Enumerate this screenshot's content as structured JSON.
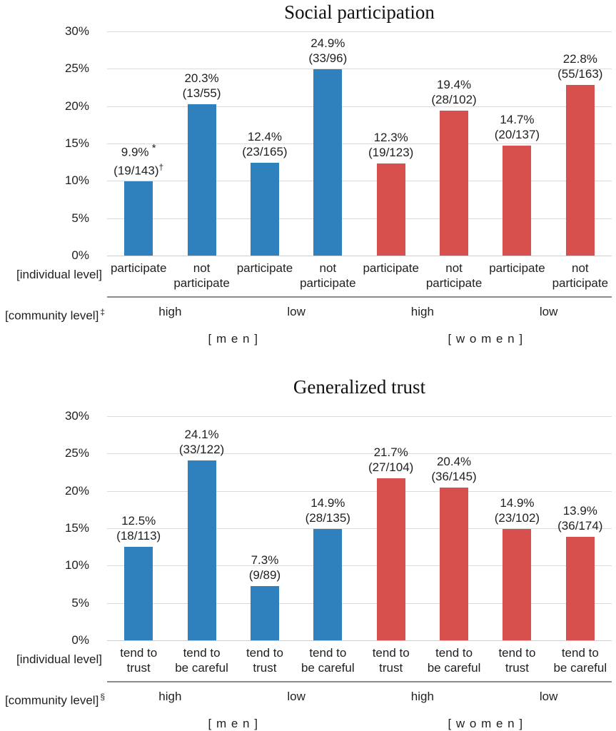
{
  "chart_data": [
    {
      "type": "bar",
      "title": "Social participation",
      "ylabel": "",
      "xlabel": "",
      "ylim": [
        0,
        30
      ],
      "grid": true,
      "yticks": [
        "30%",
        "25%",
        "20%",
        "15%",
        "10%",
        "5%",
        "0%"
      ],
      "colors": {
        "men": "#2e81bd",
        "women": "#d8504d"
      },
      "row_labels": {
        "individual": "[individual level]",
        "community": "[community level]",
        "community_sup": "‡"
      },
      "bars": [
        {
          "value": 9.9,
          "pct": "9.9%",
          "pct_sup": "*",
          "frac": "(19/143)",
          "frac_sup": "†",
          "x_lines": [
            "participate"
          ],
          "gender": "men"
        },
        {
          "value": 20.3,
          "pct": "20.3%",
          "pct_sup": "",
          "frac": "(13/55)",
          "frac_sup": "",
          "x_lines": [
            "not",
            "participate"
          ],
          "gender": "men"
        },
        {
          "value": 12.4,
          "pct": "12.4%",
          "pct_sup": "",
          "frac": "(23/165)",
          "frac_sup": "",
          "x_lines": [
            "participate"
          ],
          "gender": "men"
        },
        {
          "value": 24.9,
          "pct": "24.9%",
          "pct_sup": "",
          "frac": "(33/96)",
          "frac_sup": "",
          "x_lines": [
            "not",
            "participate"
          ],
          "gender": "men"
        },
        {
          "value": 12.3,
          "pct": "12.3%",
          "pct_sup": "",
          "frac": "(19/123)",
          "frac_sup": "",
          "x_lines": [
            "participate"
          ],
          "gender": "women"
        },
        {
          "value": 19.4,
          "pct": "19.4%",
          "pct_sup": "",
          "frac": "(28/102)",
          "frac_sup": "",
          "x_lines": [
            "not",
            "participate"
          ],
          "gender": "women"
        },
        {
          "value": 14.7,
          "pct": "14.7%",
          "pct_sup": "",
          "frac": "(20/137)",
          "frac_sup": "",
          "x_lines": [
            "participate"
          ],
          "gender": "women"
        },
        {
          "value": 22.8,
          "pct": "22.8%",
          "pct_sup": "",
          "frac": "(55/163)",
          "frac_sup": "",
          "x_lines": [
            "not",
            "participate"
          ],
          "gender": "women"
        }
      ],
      "community_groups": [
        "high",
        "low",
        "high",
        "low"
      ],
      "gender_groups": [
        "[ m e n ]",
        "[ w o m e n ]"
      ]
    },
    {
      "type": "bar",
      "title": "Generalized trust",
      "ylabel": "",
      "xlabel": "",
      "ylim": [
        0,
        30
      ],
      "grid": true,
      "yticks": [
        "30%",
        "25%",
        "20%",
        "15%",
        "10%",
        "5%",
        "0%"
      ],
      "colors": {
        "men": "#2e81bd",
        "women": "#d8504d"
      },
      "row_labels": {
        "individual": "[individual level]",
        "community": "[community level]",
        "community_sup": "§"
      },
      "bars": [
        {
          "value": 12.5,
          "pct": "12.5%",
          "pct_sup": "",
          "frac": "(18/113)",
          "frac_sup": "",
          "x_lines": [
            "tend to",
            "trust"
          ],
          "gender": "men"
        },
        {
          "value": 24.1,
          "pct": "24.1%",
          "pct_sup": "",
          "frac": "(33/122)",
          "frac_sup": "",
          "x_lines": [
            "tend to",
            "be careful"
          ],
          "gender": "men"
        },
        {
          "value": 7.3,
          "pct": "7.3%",
          "pct_sup": "",
          "frac": "(9/89)",
          "frac_sup": "",
          "x_lines": [
            "tend to",
            "trust"
          ],
          "gender": "men"
        },
        {
          "value": 14.9,
          "pct": "14.9%",
          "pct_sup": "",
          "frac": "(28/135)",
          "frac_sup": "",
          "x_lines": [
            "tend to",
            "be careful"
          ],
          "gender": "men"
        },
        {
          "value": 21.7,
          "pct": "21.7%",
          "pct_sup": "",
          "frac": "(27/104)",
          "frac_sup": "",
          "x_lines": [
            "tend to",
            "trust"
          ],
          "gender": "women"
        },
        {
          "value": 20.4,
          "pct": "20.4%",
          "pct_sup": "",
          "frac": "(36/145)",
          "frac_sup": "",
          "x_lines": [
            "tend to",
            "be careful"
          ],
          "gender": "women"
        },
        {
          "value": 14.9,
          "pct": "14.9%",
          "pct_sup": "",
          "frac": "(23/102)",
          "frac_sup": "",
          "x_lines": [
            "tend to",
            "trust"
          ],
          "gender": "women"
        },
        {
          "value": 13.9,
          "pct": "13.9%",
          "pct_sup": "",
          "frac": "(36/174)",
          "frac_sup": "",
          "x_lines": [
            "tend to",
            "be careful"
          ],
          "gender": "women"
        }
      ],
      "community_groups": [
        "high",
        "low",
        "high",
        "low"
      ],
      "gender_groups": [
        "[ m e n ]",
        "[ w o m e n ]"
      ]
    }
  ]
}
